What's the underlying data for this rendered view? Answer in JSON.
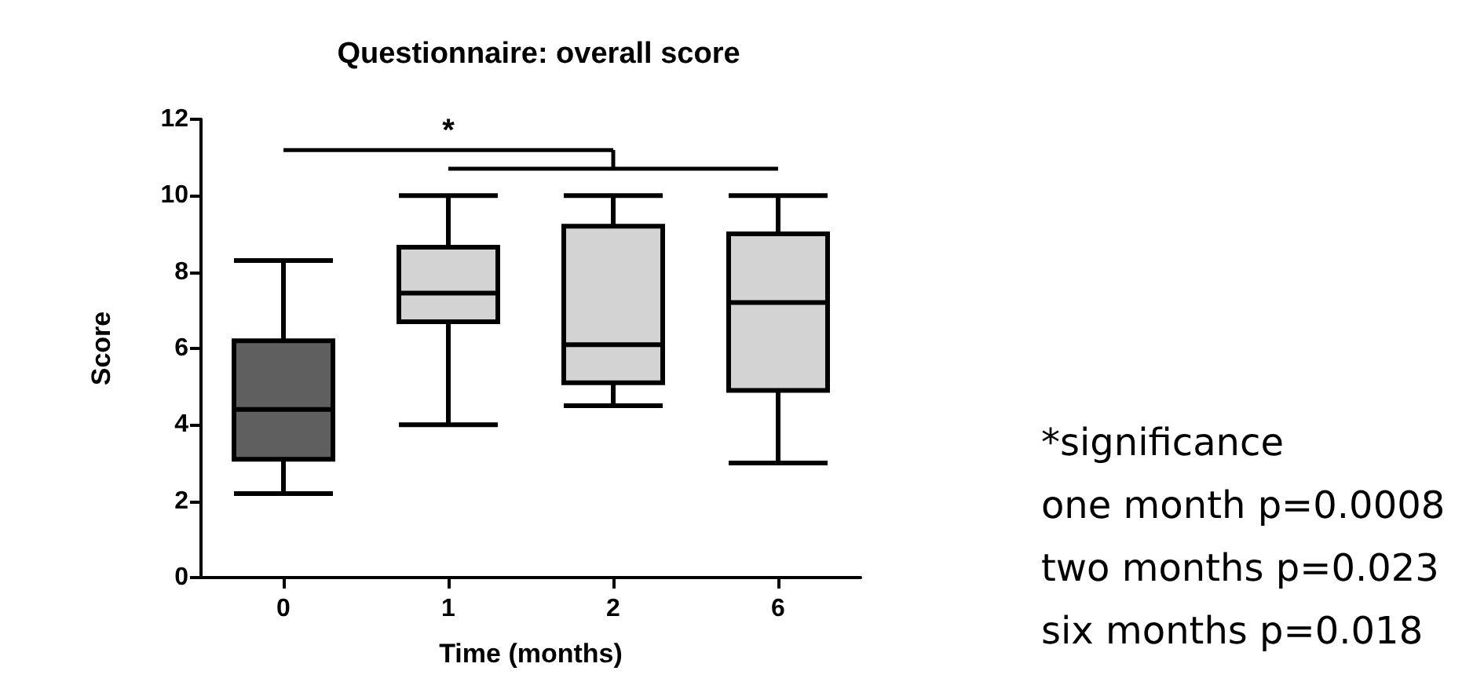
{
  "chart_data": {
    "type": "box",
    "title": "Questionnaire: overall score",
    "xlabel": "Time (months)",
    "ylabel": "Score",
    "categories": [
      "0",
      "1",
      "2",
      "6"
    ],
    "boxes": [
      {
        "low": 2.2,
        "q1": 3.1,
        "median": 4.4,
        "q3": 6.2,
        "high": 8.3
      },
      {
        "low": 4.0,
        "q1": 6.7,
        "median": 7.45,
        "q3": 8.65,
        "high": 10
      },
      {
        "low": 4.5,
        "q1": 5.1,
        "median": 6.1,
        "q3": 9.2,
        "high": 10
      },
      {
        "low": 3.0,
        "q1": 4.9,
        "median": 7.2,
        "q3": 9.0,
        "high": 10
      }
    ],
    "colors": [
      "#5f5f5f",
      "#d3d3d3",
      "#d3d3d3",
      "#d3d3d3"
    ],
    "ylim": [
      0,
      12
    ],
    "yticks": [
      0,
      2,
      4,
      6,
      8,
      10,
      12
    ],
    "grid": false,
    "annotations": [
      "*",
      "*significance",
      "one month p=0.0008",
      "two months p=0.023",
      "six months p=0.018"
    ]
  }
}
